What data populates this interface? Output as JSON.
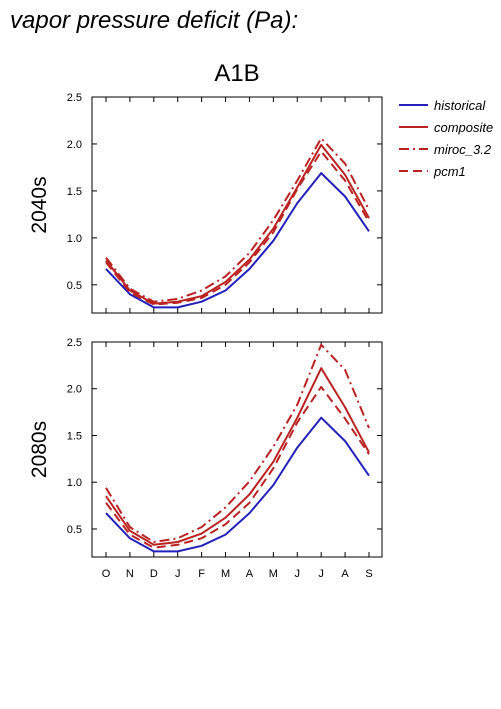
{
  "page_title": "vapor pressure deficit (Pa):",
  "scenario": "A1B",
  "colors": {
    "historical": "#2222bb",
    "model": "#bb2222"
  },
  "legend": [
    {
      "name": "historical",
      "color": "#2222bb",
      "dash": "solid"
    },
    {
      "name": "composite",
      "color": "#bb2222",
      "dash": "solid"
    },
    {
      "name": "miroc_3.2",
      "color": "#bb2222",
      "dash": "dashdot"
    },
    {
      "name": "pcm1",
      "color": "#bb2222",
      "dash": "dashed"
    }
  ],
  "chart_data": [
    {
      "type": "line",
      "panel_label": "2040s",
      "categories": [
        "O",
        "N",
        "D",
        "J",
        "F",
        "M",
        "A",
        "M",
        "J",
        "J",
        "A",
        "S"
      ],
      "ylim": [
        0.2,
        2.5
      ],
      "yticks": [
        "2.5",
        "2.0",
        "1.5",
        "1.0",
        "0.5"
      ],
      "ytick_values": [
        2.5,
        2.0,
        1.5,
        1.0,
        0.5
      ],
      "show_x_tick_labels": false,
      "series": [
        {
          "name": "historical",
          "values": [
            0.67,
            0.4,
            0.26,
            0.26,
            0.32,
            0.44,
            0.67,
            0.97,
            1.37,
            1.69,
            1.44,
            1.07
          ]
        },
        {
          "name": "composite",
          "values": [
            0.76,
            0.44,
            0.3,
            0.32,
            0.38,
            0.53,
            0.77,
            1.1,
            1.54,
            1.99,
            1.67,
            1.21
          ]
        },
        {
          "name": "miroc_3.2",
          "values": [
            0.79,
            0.46,
            0.32,
            0.35,
            0.44,
            0.59,
            0.84,
            1.19,
            1.61,
            2.06,
            1.79,
            1.3
          ]
        },
        {
          "name": "pcm1",
          "values": [
            0.74,
            0.42,
            0.29,
            0.31,
            0.36,
            0.5,
            0.74,
            1.06,
            1.52,
            1.92,
            1.61,
            1.17
          ]
        }
      ]
    },
    {
      "type": "line",
      "panel_label": "2080s",
      "categories": [
        "O",
        "N",
        "D",
        "J",
        "F",
        "M",
        "A",
        "M",
        "J",
        "J",
        "A",
        "S"
      ],
      "ylim": [
        0.2,
        2.5
      ],
      "yticks": [
        "2.5",
        "2.0",
        "1.5",
        "1.0",
        "0.5"
      ],
      "ytick_values": [
        2.5,
        2.0,
        1.5,
        1.0,
        0.5
      ],
      "show_x_tick_labels": true,
      "series": [
        {
          "name": "historical",
          "values": [
            0.67,
            0.4,
            0.26,
            0.26,
            0.32,
            0.44,
            0.67,
            0.97,
            1.37,
            1.69,
            1.44,
            1.07
          ]
        },
        {
          "name": "composite",
          "values": [
            0.85,
            0.48,
            0.33,
            0.36,
            0.45,
            0.62,
            0.87,
            1.22,
            1.69,
            2.22,
            1.8,
            1.32
          ]
        },
        {
          "name": "miroc_3.2",
          "values": [
            0.94,
            0.52,
            0.36,
            0.4,
            0.52,
            0.73,
            1.01,
            1.38,
            1.83,
            2.47,
            2.2,
            1.58
          ]
        },
        {
          "name": "pcm1",
          "values": [
            0.78,
            0.44,
            0.3,
            0.33,
            0.4,
            0.55,
            0.78,
            1.15,
            1.64,
            2.02,
            1.68,
            1.3
          ]
        }
      ]
    }
  ]
}
